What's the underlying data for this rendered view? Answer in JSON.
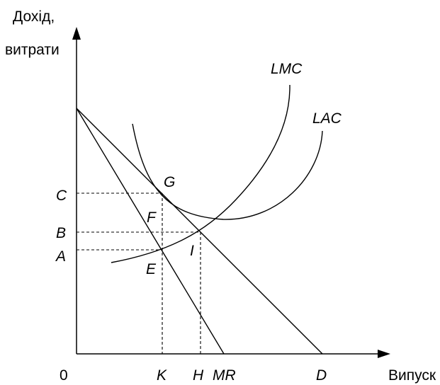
{
  "axes": {
    "y_label_line1": "Дохід,",
    "y_label_line2": "витрати",
    "x_label": "Випуск",
    "origin": "0"
  },
  "curves": {
    "lmc": "LMC",
    "lac": "LAC"
  },
  "points": {
    "g": "G",
    "f": "F",
    "e": "E",
    "i": "I"
  },
  "y_ticks": {
    "c": "C",
    "b": "B",
    "a": "A"
  },
  "x_ticks": {
    "k": "K",
    "h": "H",
    "mr": "MR",
    "d": "D"
  }
}
